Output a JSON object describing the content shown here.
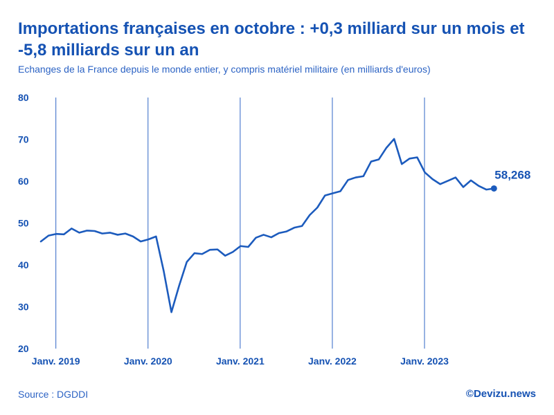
{
  "header": {
    "title": "Importations françaises en octobre : +0,3 milliard sur un mois et -5,8 milliards sur un an",
    "subtitle": "Echanges de la France depuis le monde entier, y compris matériel militaire (en milliards d'euros)"
  },
  "footer": {
    "source": "Source : DGDDI",
    "credit": "©Devizu.news"
  },
  "colors": {
    "accent": "#1552b3",
    "line": "#1c5bbd",
    "grid": "#2e65c6"
  },
  "chart_data": {
    "type": "line",
    "title": "Importations françaises en octobre : +0,3 milliard sur un mois et -5,8 milliards sur un an",
    "subtitle": "Echanges de la France depuis le monde entier, y compris matériel militaire (en milliards d'euros)",
    "xlabel": "",
    "ylabel": "",
    "ylim": [
      20,
      80
    ],
    "yticks": [
      20,
      30,
      40,
      50,
      60,
      70,
      80
    ],
    "x_start": "2018-11",
    "year_markers": [
      {
        "label": "Janv. 2019",
        "index": 2
      },
      {
        "label": "Janv. 2020",
        "index": 14
      },
      {
        "label": "Janv. 2021",
        "index": 26
      },
      {
        "label": "Janv. 2022",
        "index": 38
      },
      {
        "label": "Janv. 2023",
        "index": 50
      }
    ],
    "series": [
      {
        "name": "Importations",
        "values": [
          45.6,
          47.0,
          47.4,
          47.3,
          48.7,
          47.7,
          48.2,
          48.1,
          47.5,
          47.7,
          47.2,
          47.5,
          46.8,
          45.6,
          46.1,
          46.8,
          38.5,
          28.7,
          35.0,
          40.7,
          42.8,
          42.6,
          43.6,
          43.7,
          42.2,
          43.1,
          44.5,
          44.3,
          46.5,
          47.2,
          46.6,
          47.6,
          48.0,
          48.9,
          49.3,
          51.9,
          53.7,
          56.6,
          57.1,
          57.6,
          60.3,
          60.9,
          61.2,
          64.7,
          65.2,
          68.0,
          70.1,
          64.1,
          65.4,
          65.7,
          62.1,
          60.5,
          59.3,
          60.1,
          60.9,
          58.6,
          60.2,
          58.9,
          58.0,
          58.268
        ]
      }
    ],
    "end_label": "58,268"
  }
}
